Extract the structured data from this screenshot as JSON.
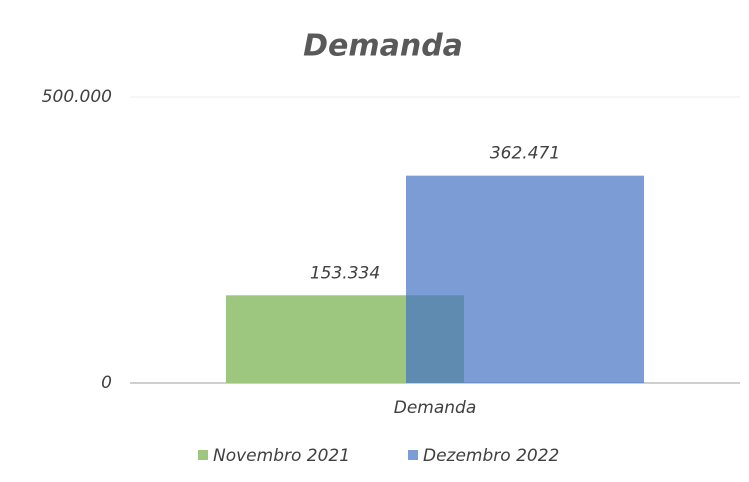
{
  "chart_data": {
    "type": "bar",
    "title": "Demanda",
    "categories": [
      "Demanda"
    ],
    "series": [
      {
        "name": "Novembro 2021",
        "color": "#9dc67f",
        "values": [
          153334
        ],
        "value_labels": [
          "153.334"
        ]
      },
      {
        "name": "Dezembro 2022",
        "color": "#4472c4",
        "values": [
          362471
        ],
        "value_labels": [
          "362.471"
        ]
      }
    ],
    "ylim": [
      0,
      500000
    ],
    "yticks": [
      {
        "value": 0,
        "label": "0"
      },
      {
        "value": 500000,
        "label": "500.000"
      }
    ],
    "grid": true
  }
}
